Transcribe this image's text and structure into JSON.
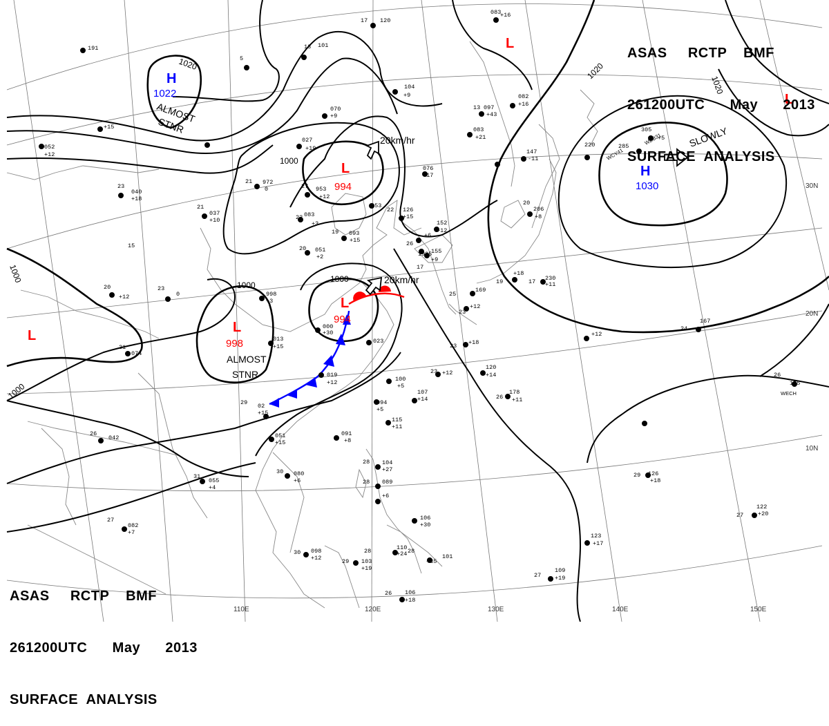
{
  "header_top": {
    "line1": "ASAS     RCTP    BMF",
    "line2": "261200UTC      May      2013",
    "line3": "SURFACE  ANALYSIS"
  },
  "header_bottom": {
    "line1": "ASAS     RCTP    BMF",
    "line2": "261200UTC      May      2013",
    "line3": "SURFACE  ANALYSIS"
  },
  "longitude_labels": [
    "110E",
    "120E",
    "130E",
    "140E",
    "150E"
  ],
  "latitude_labels": [
    "30N",
    "20N",
    "10N"
  ],
  "pressure_centers": [
    {
      "type": "H",
      "value": "1022"
    },
    {
      "type": "H",
      "value": "1030"
    },
    {
      "type": "L",
      "value": "994"
    },
    {
      "type": "L",
      "value": "998"
    },
    {
      "type": "L",
      "value": "994"
    },
    {
      "type": "L",
      "value": ""
    },
    {
      "type": "L",
      "value": ""
    },
    {
      "type": "L",
      "value": ""
    }
  ],
  "isobar_labels": [
    "1020",
    "1000",
    "1000",
    "1000",
    "1000",
    "1020",
    "1020"
  ],
  "motion_labels": [
    "20km/hr",
    "20km/hr",
    "SLOWLY"
  ],
  "almost_stnr": [
    "ALMOST",
    "STNR",
    "ALMOST",
    "STNR"
  ],
  "station_codes": [
    "WCY41",
    "WDB31",
    "WECH"
  ],
  "colors": {
    "high": "#0000ff",
    "low": "#ff0000",
    "cold_front": "#0000ff",
    "warm_front": "#ff0000",
    "isobar": "#000000",
    "grid": "#777777",
    "coast": "#888888"
  }
}
